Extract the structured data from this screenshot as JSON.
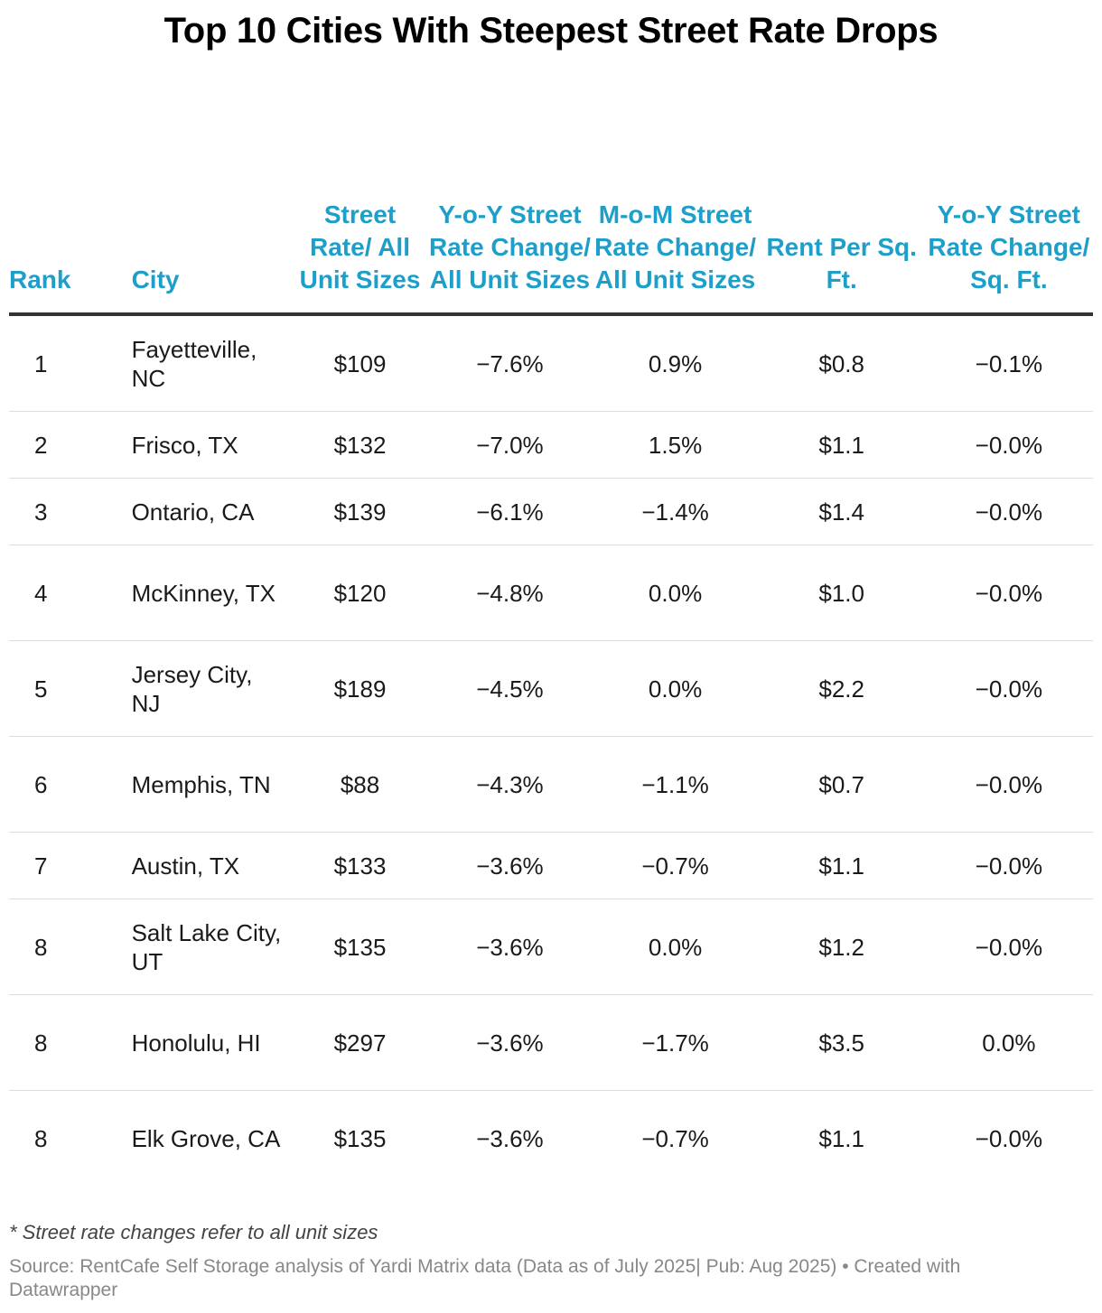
{
  "chart_data": {
    "type": "table",
    "title": "Top 10 Cities With Steepest Street Rate Drops",
    "columns": [
      "Rank",
      "City",
      "Street Rate/ All Unit Sizes",
      "Y-o-Y Street Rate Change/ All Unit Sizes",
      "M-o-M Street Rate Change/ All Unit Sizes",
      "Rent Per Sq. Ft.",
      "Y-o-Y Street Rate Change/ Sq. Ft."
    ],
    "rows": [
      {
        "rank": "1",
        "city": "Fayetteville, NC",
        "street_rate": "$109",
        "yoy": "−7.6%",
        "mom": "0.9%",
        "rent_sqft": "$0.8",
        "yoy_sqft": "−0.1%"
      },
      {
        "rank": "2",
        "city": "Frisco, TX",
        "street_rate": "$132",
        "yoy": "−7.0%",
        "mom": "1.5%",
        "rent_sqft": "$1.1",
        "yoy_sqft": "−0.0%"
      },
      {
        "rank": "3",
        "city": "Ontario, CA",
        "street_rate": "$139",
        "yoy": "−6.1%",
        "mom": "−1.4%",
        "rent_sqft": "$1.4",
        "yoy_sqft": "−0.0%"
      },
      {
        "rank": "4",
        "city": "McKinney, TX",
        "street_rate": "$120",
        "yoy": "−4.8%",
        "mom": "0.0%",
        "rent_sqft": "$1.0",
        "yoy_sqft": "−0.0%"
      },
      {
        "rank": "5",
        "city": "Jersey City, NJ",
        "street_rate": "$189",
        "yoy": "−4.5%",
        "mom": "0.0%",
        "rent_sqft": "$2.2",
        "yoy_sqft": "−0.0%"
      },
      {
        "rank": "6",
        "city": "Memphis, TN",
        "street_rate": "$88",
        "yoy": "−4.3%",
        "mom": "−1.1%",
        "rent_sqft": "$0.7",
        "yoy_sqft": "−0.0%"
      },
      {
        "rank": "7",
        "city": "Austin, TX",
        "street_rate": "$133",
        "yoy": "−3.6%",
        "mom": "−0.7%",
        "rent_sqft": "$1.1",
        "yoy_sqft": "−0.0%"
      },
      {
        "rank": "8",
        "city": "Salt Lake City, UT",
        "street_rate": "$135",
        "yoy": "−3.6%",
        "mom": "0.0%",
        "rent_sqft": "$1.2",
        "yoy_sqft": "−0.0%"
      },
      {
        "rank": "8",
        "city": "Honolulu, HI",
        "street_rate": "$297",
        "yoy": "−3.6%",
        "mom": "−1.7%",
        "rent_sqft": "$3.5",
        "yoy_sqft": "0.0%"
      },
      {
        "rank": "8",
        "city": "Elk Grove, CA",
        "street_rate": "$135",
        "yoy": "−3.6%",
        "mom": "−0.7%",
        "rent_sqft": "$1.1",
        "yoy_sqft": "−0.0%"
      }
    ],
    "footnote": "* Street rate changes refer to all unit sizes",
    "source": "Source: RentCafe Self Storage analysis of Yardi Matrix data (Data as of July 2025| Pub: Aug 2025) • Created with Datawrapper",
    "header_color": "#1e9fc9"
  }
}
